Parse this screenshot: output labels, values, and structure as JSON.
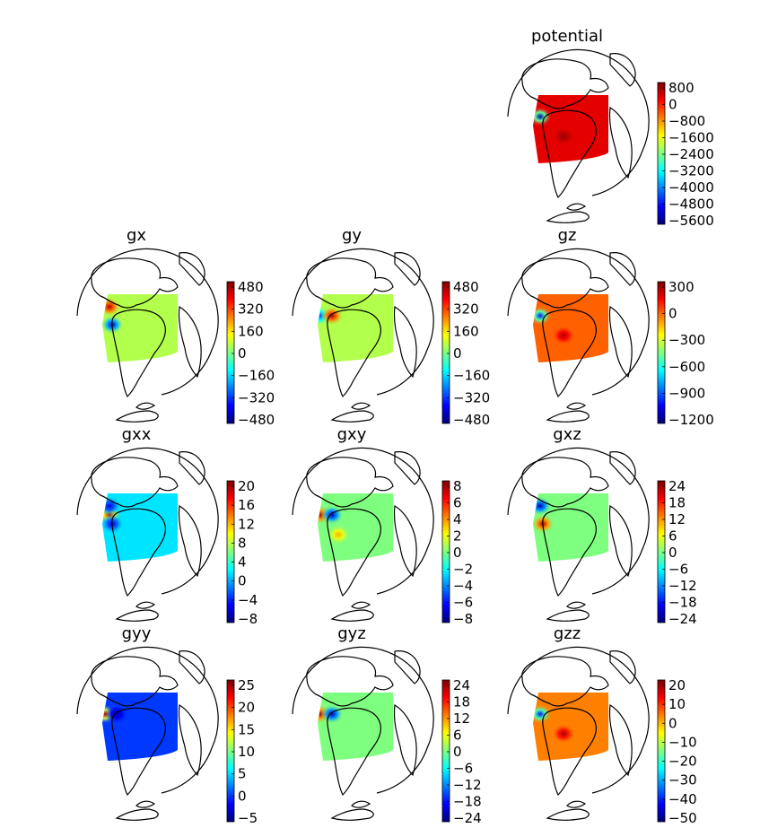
{
  "figure": {
    "description_colormap": "jet",
    "colors": {
      "jet": [
        "#00007f",
        "#0000ff",
        "#007fff",
        "#00ffff",
        "#7fff7f",
        "#ffff00",
        "#ff7f00",
        "#ff0000",
        "#7f0000"
      ],
      "coast": "#000000"
    }
  },
  "chart_data": [
    {
      "type": "heatmap",
      "title": "potential",
      "colorbar": {
        "ticks": [
          "800",
          "0",
          "−800",
          "−1600",
          "−2400",
          "−3200",
          "−4000",
          "−4800",
          "−5600"
        ],
        "range": [
          -5600,
          800
        ]
      },
      "background_level": 0.9,
      "anomalies": [
        {
          "where": "west-center",
          "level": 0.05
        },
        {
          "where": "south-east",
          "level": 0.97
        }
      ]
    },
    {
      "type": "heatmap",
      "title": "gx",
      "colorbar": {
        "ticks": [
          "480",
          "320",
          "160",
          "0",
          "−160",
          "−320",
          "−480"
        ],
        "range": [
          -560,
          560
        ]
      },
      "background_level": 0.55,
      "anomalies": [
        {
          "where": "west-center-upper",
          "level": 0.95
        },
        {
          "where": "west-center-lower",
          "level": 0.05
        }
      ]
    },
    {
      "type": "heatmap",
      "title": "gy",
      "colorbar": {
        "ticks": [
          "480",
          "320",
          "160",
          "0",
          "−160",
          "−320",
          "−480"
        ],
        "range": [
          -560,
          560
        ]
      },
      "background_level": 0.55,
      "anomalies": [
        {
          "where": "west-center-left",
          "level": 0.2
        },
        {
          "where": "west-center-right",
          "level": 0.95
        }
      ]
    },
    {
      "type": "heatmap",
      "title": "gz",
      "colorbar": {
        "ticks": [
          "300",
          "0",
          "−300",
          "−600",
          "−900",
          "−1200"
        ],
        "range": [
          -1350,
          450
        ]
      },
      "background_level": 0.78,
      "anomalies": [
        {
          "where": "west-center",
          "level": 0.15
        },
        {
          "where": "south-east",
          "level": 0.95
        }
      ]
    },
    {
      "type": "heatmap",
      "title": "gxx",
      "colorbar": {
        "ticks": [
          "20",
          "16",
          "12",
          "8",
          "4",
          "0",
          "−4",
          "−8"
        ],
        "range": [
          -10,
          20
        ]
      },
      "background_level": 0.35,
      "anomalies": [
        {
          "where": "west-center",
          "level": 0.95
        },
        {
          "where": "west-center-upper",
          "level": 0.1
        },
        {
          "where": "west-center-lower",
          "level": 0.1
        }
      ]
    },
    {
      "type": "heatmap",
      "title": "gxy",
      "colorbar": {
        "ticks": [
          "8",
          "6",
          "4",
          "2",
          "0",
          "−2",
          "−4",
          "−6",
          "−8"
        ],
        "range": [
          -8,
          8
        ]
      },
      "background_level": 0.5,
      "anomalies": [
        {
          "where": "west-center-left",
          "level": 0.95
        },
        {
          "where": "west-center-right",
          "level": 0.05
        },
        {
          "where": "south-center",
          "level": 0.7
        }
      ]
    },
    {
      "type": "heatmap",
      "title": "gxz",
      "colorbar": {
        "ticks": [
          "24",
          "18",
          "12",
          "6",
          "0",
          "−6",
          "−12",
          "−18",
          "−24"
        ],
        "range": [
          -24,
          24
        ]
      },
      "background_level": 0.5,
      "anomalies": [
        {
          "where": "west-center-upper",
          "level": 0.05
        },
        {
          "where": "west-center-lower",
          "level": 0.95
        }
      ]
    },
    {
      "type": "heatmap",
      "title": "gyy",
      "colorbar": {
        "ticks": [
          "25",
          "20",
          "15",
          "10",
          "5",
          "0",
          "−5"
        ],
        "range": [
          -8,
          28
        ]
      },
      "background_level": 0.18,
      "anomalies": [
        {
          "where": "west-center-left",
          "level": 0.95
        },
        {
          "where": "west-center-right",
          "level": 0.05
        }
      ]
    },
    {
      "type": "heatmap",
      "title": "gyz",
      "colorbar": {
        "ticks": [
          "24",
          "18",
          "12",
          "6",
          "0",
          "−6",
          "−12",
          "−18",
          "−24"
        ],
        "range": [
          -24,
          24
        ]
      },
      "background_level": 0.5,
      "anomalies": [
        {
          "where": "west-center-left",
          "level": 0.95
        },
        {
          "where": "west-center-right",
          "level": 0.05
        }
      ]
    },
    {
      "type": "heatmap",
      "title": "gzz",
      "colorbar": {
        "ticks": [
          "20",
          "10",
          "0",
          "−10",
          "−20",
          "−30",
          "−40",
          "−50"
        ],
        "range": [
          -50,
          20
        ]
      },
      "background_level": 0.75,
      "anomalies": [
        {
          "where": "west-center",
          "level": 0.15
        },
        {
          "where": "south-east",
          "level": 0.95
        }
      ]
    }
  ]
}
